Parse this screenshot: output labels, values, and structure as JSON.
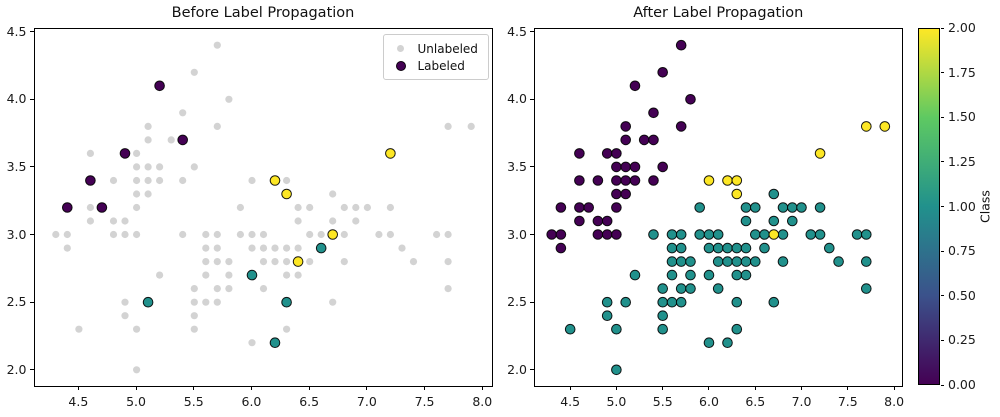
{
  "figure": {
    "background": "#ffffff"
  },
  "colors": {
    "unlabeled": "#d3d3d3",
    "class0": "#440154",
    "class1": "#21918c",
    "class2": "#fde725",
    "marker_edge": "#000000",
    "spine": "#000000",
    "tick_text": "#1a1a1a",
    "legend_border": "#cccccc",
    "viridis_stops": [
      "#440154",
      "#3b528b",
      "#21918c",
      "#5ec962",
      "#fde725"
    ]
  },
  "legend": {
    "items": [
      {
        "label": "Unlabeled",
        "color": "#d3d3d3"
      },
      {
        "label": "Labeled",
        "color": "#440154"
      }
    ]
  },
  "colorbar": {
    "label": "Class",
    "tick_labels": [
      "0.00",
      "0.25",
      "0.50",
      "0.75",
      "1.00",
      "1.25",
      "1.50",
      "1.75",
      "2.00"
    ],
    "vmin": 0.0,
    "vmax": 2.0
  },
  "chart_data": [
    {
      "type": "scatter",
      "title": "Before Label Propagation",
      "xlabel": "",
      "ylabel": "",
      "xlim": [
        4.12,
        8.08
      ],
      "ylim": [
        1.88,
        4.52
      ],
      "x_tick_values": [
        4.5,
        5.0,
        5.5,
        6.0,
        6.5,
        7.0,
        7.5,
        8.0
      ],
      "x_tick_labels": [
        "4.5",
        "5.0",
        "5.5",
        "6.0",
        "6.5",
        "7.0",
        "7.5",
        "8.0"
      ],
      "y_tick_values": [
        2.0,
        2.5,
        3.0,
        3.5,
        4.0,
        4.5
      ],
      "y_tick_labels": [
        "2.0",
        "2.5",
        "3.0",
        "3.5",
        "4.0",
        "4.5"
      ],
      "grid": false,
      "legend_position": "upper right",
      "series": [
        {
          "name": "Unlabeled",
          "color": "#d3d3d3",
          "edge": null,
          "radius": 3.6,
          "points": [
            [
              4.3,
              3.0
            ],
            [
              4.4,
              2.9
            ],
            [
              4.4,
              3.0
            ],
            [
              4.5,
              2.3
            ],
            [
              4.6,
              3.1
            ],
            [
              4.6,
              3.2
            ],
            [
              4.6,
              3.6
            ],
            [
              4.8,
              3.0
            ],
            [
              4.8,
              3.1
            ],
            [
              4.8,
              3.4
            ],
            [
              4.9,
              3.0
            ],
            [
              4.9,
              3.1
            ],
            [
              5.0,
              3.0
            ],
            [
              5.0,
              3.2
            ],
            [
              5.0,
              3.3
            ],
            [
              5.0,
              3.4
            ],
            [
              5.0,
              3.5
            ],
            [
              5.0,
              3.6
            ],
            [
              5.1,
              3.3
            ],
            [
              5.1,
              3.4
            ],
            [
              5.1,
              3.5
            ],
            [
              5.1,
              3.7
            ],
            [
              5.1,
              3.8
            ],
            [
              5.2,
              3.4
            ],
            [
              5.2,
              3.5
            ],
            [
              5.3,
              3.7
            ],
            [
              5.4,
              3.4
            ],
            [
              5.4,
              3.9
            ],
            [
              5.5,
              3.5
            ],
            [
              5.5,
              4.2
            ],
            [
              5.7,
              3.8
            ],
            [
              5.7,
              4.4
            ],
            [
              5.8,
              4.0
            ],
            [
              4.9,
              2.4
            ],
            [
              4.9,
              2.5
            ],
            [
              5.0,
              2.0
            ],
            [
              5.0,
              2.3
            ],
            [
              5.2,
              2.7
            ],
            [
              5.4,
              3.0
            ],
            [
              5.5,
              2.3
            ],
            [
              5.5,
              2.4
            ],
            [
              5.5,
              2.5
            ],
            [
              5.5,
              2.6
            ],
            [
              5.6,
              2.5
            ],
            [
              5.6,
              2.7
            ],
            [
              5.6,
              2.8
            ],
            [
              5.6,
              2.9
            ],
            [
              5.6,
              3.0
            ],
            [
              5.7,
              2.5
            ],
            [
              5.7,
              2.6
            ],
            [
              5.7,
              2.8
            ],
            [
              5.7,
              2.9
            ],
            [
              5.7,
              3.0
            ],
            [
              5.8,
              2.6
            ],
            [
              5.8,
              2.7
            ],
            [
              5.8,
              2.8
            ],
            [
              5.9,
              3.0
            ],
            [
              5.9,
              3.2
            ],
            [
              6.0,
              2.2
            ],
            [
              6.0,
              2.9
            ],
            [
              6.0,
              3.0
            ],
            [
              6.0,
              3.4
            ],
            [
              6.1,
              2.6
            ],
            [
              6.1,
              2.8
            ],
            [
              6.1,
              2.9
            ],
            [
              6.1,
              3.0
            ],
            [
              6.2,
              2.8
            ],
            [
              6.2,
              2.9
            ],
            [
              6.3,
              2.3
            ],
            [
              6.3,
              2.7
            ],
            [
              6.3,
              2.8
            ],
            [
              6.3,
              2.9
            ],
            [
              6.3,
              3.4
            ],
            [
              6.4,
              2.7
            ],
            [
              6.4,
              2.9
            ],
            [
              6.4,
              3.1
            ],
            [
              6.4,
              3.2
            ],
            [
              6.5,
              2.8
            ],
            [
              6.5,
              3.0
            ],
            [
              6.5,
              3.2
            ],
            [
              6.6,
              3.0
            ],
            [
              6.7,
              2.5
            ],
            [
              6.7,
              3.1
            ],
            [
              6.7,
              3.3
            ],
            [
              6.8,
              2.8
            ],
            [
              6.8,
              3.0
            ],
            [
              6.8,
              3.2
            ],
            [
              6.9,
              3.1
            ],
            [
              6.9,
              3.2
            ],
            [
              7.0,
              3.2
            ],
            [
              7.1,
              3.0
            ],
            [
              7.2,
              3.0
            ],
            [
              7.2,
              3.2
            ],
            [
              7.3,
              2.9
            ],
            [
              7.4,
              2.8
            ],
            [
              7.6,
              3.0
            ],
            [
              7.7,
              2.6
            ],
            [
              7.7,
              2.8
            ],
            [
              7.7,
              3.0
            ],
            [
              7.7,
              3.8
            ],
            [
              7.9,
              3.8
            ]
          ]
        },
        {
          "name": "Labeled class 0",
          "color": "#440154",
          "edge": "#000000",
          "radius": 4.8,
          "points": [
            [
              4.4,
              3.2
            ],
            [
              4.6,
              3.4
            ],
            [
              4.7,
              3.2
            ],
            [
              4.9,
              3.6
            ],
            [
              5.2,
              4.1
            ],
            [
              5.4,
              3.7
            ]
          ]
        },
        {
          "name": "Labeled class 1",
          "color": "#21918c",
          "edge": "#000000",
          "radius": 4.8,
          "points": [
            [
              5.1,
              2.5
            ],
            [
              6.0,
              2.7
            ],
            [
              6.2,
              2.2
            ],
            [
              6.3,
              2.5
            ],
            [
              6.6,
              2.9
            ]
          ]
        },
        {
          "name": "Labeled class 2",
          "color": "#fde725",
          "edge": "#000000",
          "radius": 4.8,
          "points": [
            [
              6.2,
              3.4
            ],
            [
              6.3,
              3.3
            ],
            [
              6.4,
              2.8
            ],
            [
              6.7,
              3.0
            ],
            [
              7.2,
              3.6
            ]
          ]
        }
      ]
    },
    {
      "type": "scatter",
      "title": "After Label Propagation",
      "xlabel": "",
      "ylabel": "",
      "xlim": [
        4.12,
        8.08
      ],
      "ylim": [
        1.88,
        4.52
      ],
      "x_tick_values": [
        4.5,
        5.0,
        5.5,
        6.0,
        6.5,
        7.0,
        7.5,
        8.0
      ],
      "x_tick_labels": [
        "4.5",
        "5.0",
        "5.5",
        "6.0",
        "6.5",
        "7.0",
        "7.5",
        "8.0"
      ],
      "y_tick_values": [
        2.0,
        2.5,
        3.0,
        3.5,
        4.0,
        4.5
      ],
      "y_tick_labels": [
        "2.0",
        "2.5",
        "3.0",
        "3.5",
        "4.0",
        "4.5"
      ],
      "grid": false,
      "legend_position": null,
      "series": [
        {
          "name": "Class 0",
          "color": "#440154",
          "edge": "#000000",
          "radius": 4.8,
          "points": [
            [
              4.3,
              3.0
            ],
            [
              4.4,
              2.9
            ],
            [
              4.4,
              3.0
            ],
            [
              4.4,
              3.2
            ],
            [
              4.6,
              3.1
            ],
            [
              4.6,
              3.2
            ],
            [
              4.6,
              3.4
            ],
            [
              4.6,
              3.6
            ],
            [
              4.7,
              3.2
            ],
            [
              4.8,
              3.0
            ],
            [
              4.8,
              3.1
            ],
            [
              4.8,
              3.4
            ],
            [
              4.9,
              3.0
            ],
            [
              4.9,
              3.1
            ],
            [
              4.9,
              3.6
            ],
            [
              5.0,
              3.0
            ],
            [
              5.0,
              3.2
            ],
            [
              5.0,
              3.3
            ],
            [
              5.0,
              3.4
            ],
            [
              5.0,
              3.5
            ],
            [
              5.0,
              3.6
            ],
            [
              5.1,
              3.3
            ],
            [
              5.1,
              3.4
            ],
            [
              5.1,
              3.5
            ],
            [
              5.1,
              3.7
            ],
            [
              5.1,
              3.8
            ],
            [
              5.2,
              3.4
            ],
            [
              5.2,
              3.5
            ],
            [
              5.2,
              4.1
            ],
            [
              5.3,
              3.7
            ],
            [
              5.4,
              3.4
            ],
            [
              5.4,
              3.7
            ],
            [
              5.4,
              3.9
            ],
            [
              5.5,
              3.5
            ],
            [
              5.5,
              4.2
            ],
            [
              5.7,
              3.8
            ],
            [
              5.7,
              4.4
            ],
            [
              5.8,
              4.0
            ]
          ]
        },
        {
          "name": "Class 1",
          "color": "#21918c",
          "edge": "#000000",
          "radius": 4.8,
          "points": [
            [
              4.5,
              2.3
            ],
            [
              4.9,
              2.4
            ],
            [
              4.9,
              2.5
            ],
            [
              5.0,
              2.0
            ],
            [
              5.0,
              2.3
            ],
            [
              5.1,
              2.5
            ],
            [
              5.2,
              2.7
            ],
            [
              5.4,
              3.0
            ],
            [
              5.5,
              2.3
            ],
            [
              5.5,
              2.4
            ],
            [
              5.5,
              2.5
            ],
            [
              5.5,
              2.6
            ],
            [
              5.6,
              2.5
            ],
            [
              5.6,
              2.7
            ],
            [
              5.6,
              2.8
            ],
            [
              5.6,
              2.9
            ],
            [
              5.6,
              3.0
            ],
            [
              5.7,
              2.5
            ],
            [
              5.7,
              2.6
            ],
            [
              5.7,
              2.8
            ],
            [
              5.7,
              2.9
            ],
            [
              5.7,
              3.0
            ],
            [
              5.8,
              2.6
            ],
            [
              5.8,
              2.7
            ],
            [
              5.8,
              2.8
            ],
            [
              5.9,
              3.0
            ],
            [
              5.9,
              3.2
            ],
            [
              6.0,
              2.2
            ],
            [
              6.0,
              2.7
            ],
            [
              6.0,
              2.9
            ],
            [
              6.0,
              3.0
            ],
            [
              6.1,
              2.6
            ],
            [
              6.1,
              2.8
            ],
            [
              6.1,
              2.9
            ],
            [
              6.1,
              3.0
            ],
            [
              6.2,
              2.2
            ],
            [
              6.2,
              2.8
            ],
            [
              6.2,
              2.9
            ],
            [
              6.3,
              2.3
            ],
            [
              6.3,
              2.5
            ],
            [
              6.3,
              2.7
            ],
            [
              6.3,
              2.8
            ],
            [
              6.3,
              2.9
            ],
            [
              6.4,
              2.7
            ],
            [
              6.4,
              2.8
            ],
            [
              6.4,
              2.9
            ],
            [
              6.4,
              3.1
            ],
            [
              6.4,
              3.2
            ],
            [
              6.5,
              2.8
            ],
            [
              6.5,
              3.0
            ],
            [
              6.5,
              3.2
            ],
            [
              6.6,
              2.9
            ],
            [
              6.6,
              3.0
            ],
            [
              6.7,
              2.5
            ],
            [
              6.7,
              3.1
            ],
            [
              6.7,
              3.3
            ],
            [
              6.8,
              2.8
            ],
            [
              6.8,
              3.0
            ],
            [
              6.8,
              3.2
            ],
            [
              6.9,
              3.1
            ],
            [
              6.9,
              3.2
            ],
            [
              7.0,
              3.2
            ],
            [
              7.1,
              3.0
            ],
            [
              7.2,
              3.0
            ],
            [
              7.2,
              3.2
            ],
            [
              7.3,
              2.9
            ],
            [
              7.4,
              2.8
            ],
            [
              7.6,
              3.0
            ],
            [
              7.7,
              2.6
            ],
            [
              7.7,
              2.8
            ],
            [
              7.7,
              3.0
            ]
          ]
        },
        {
          "name": "Class 2",
          "color": "#fde725",
          "edge": "#000000",
          "radius": 4.8,
          "points": [
            [
              6.0,
              3.4
            ],
            [
              6.2,
              3.4
            ],
            [
              6.3,
              3.3
            ],
            [
              6.3,
              3.4
            ],
            [
              6.7,
              3.0
            ],
            [
              7.2,
              3.6
            ],
            [
              7.7,
              3.8
            ],
            [
              7.9,
              3.8
            ]
          ]
        }
      ]
    }
  ]
}
